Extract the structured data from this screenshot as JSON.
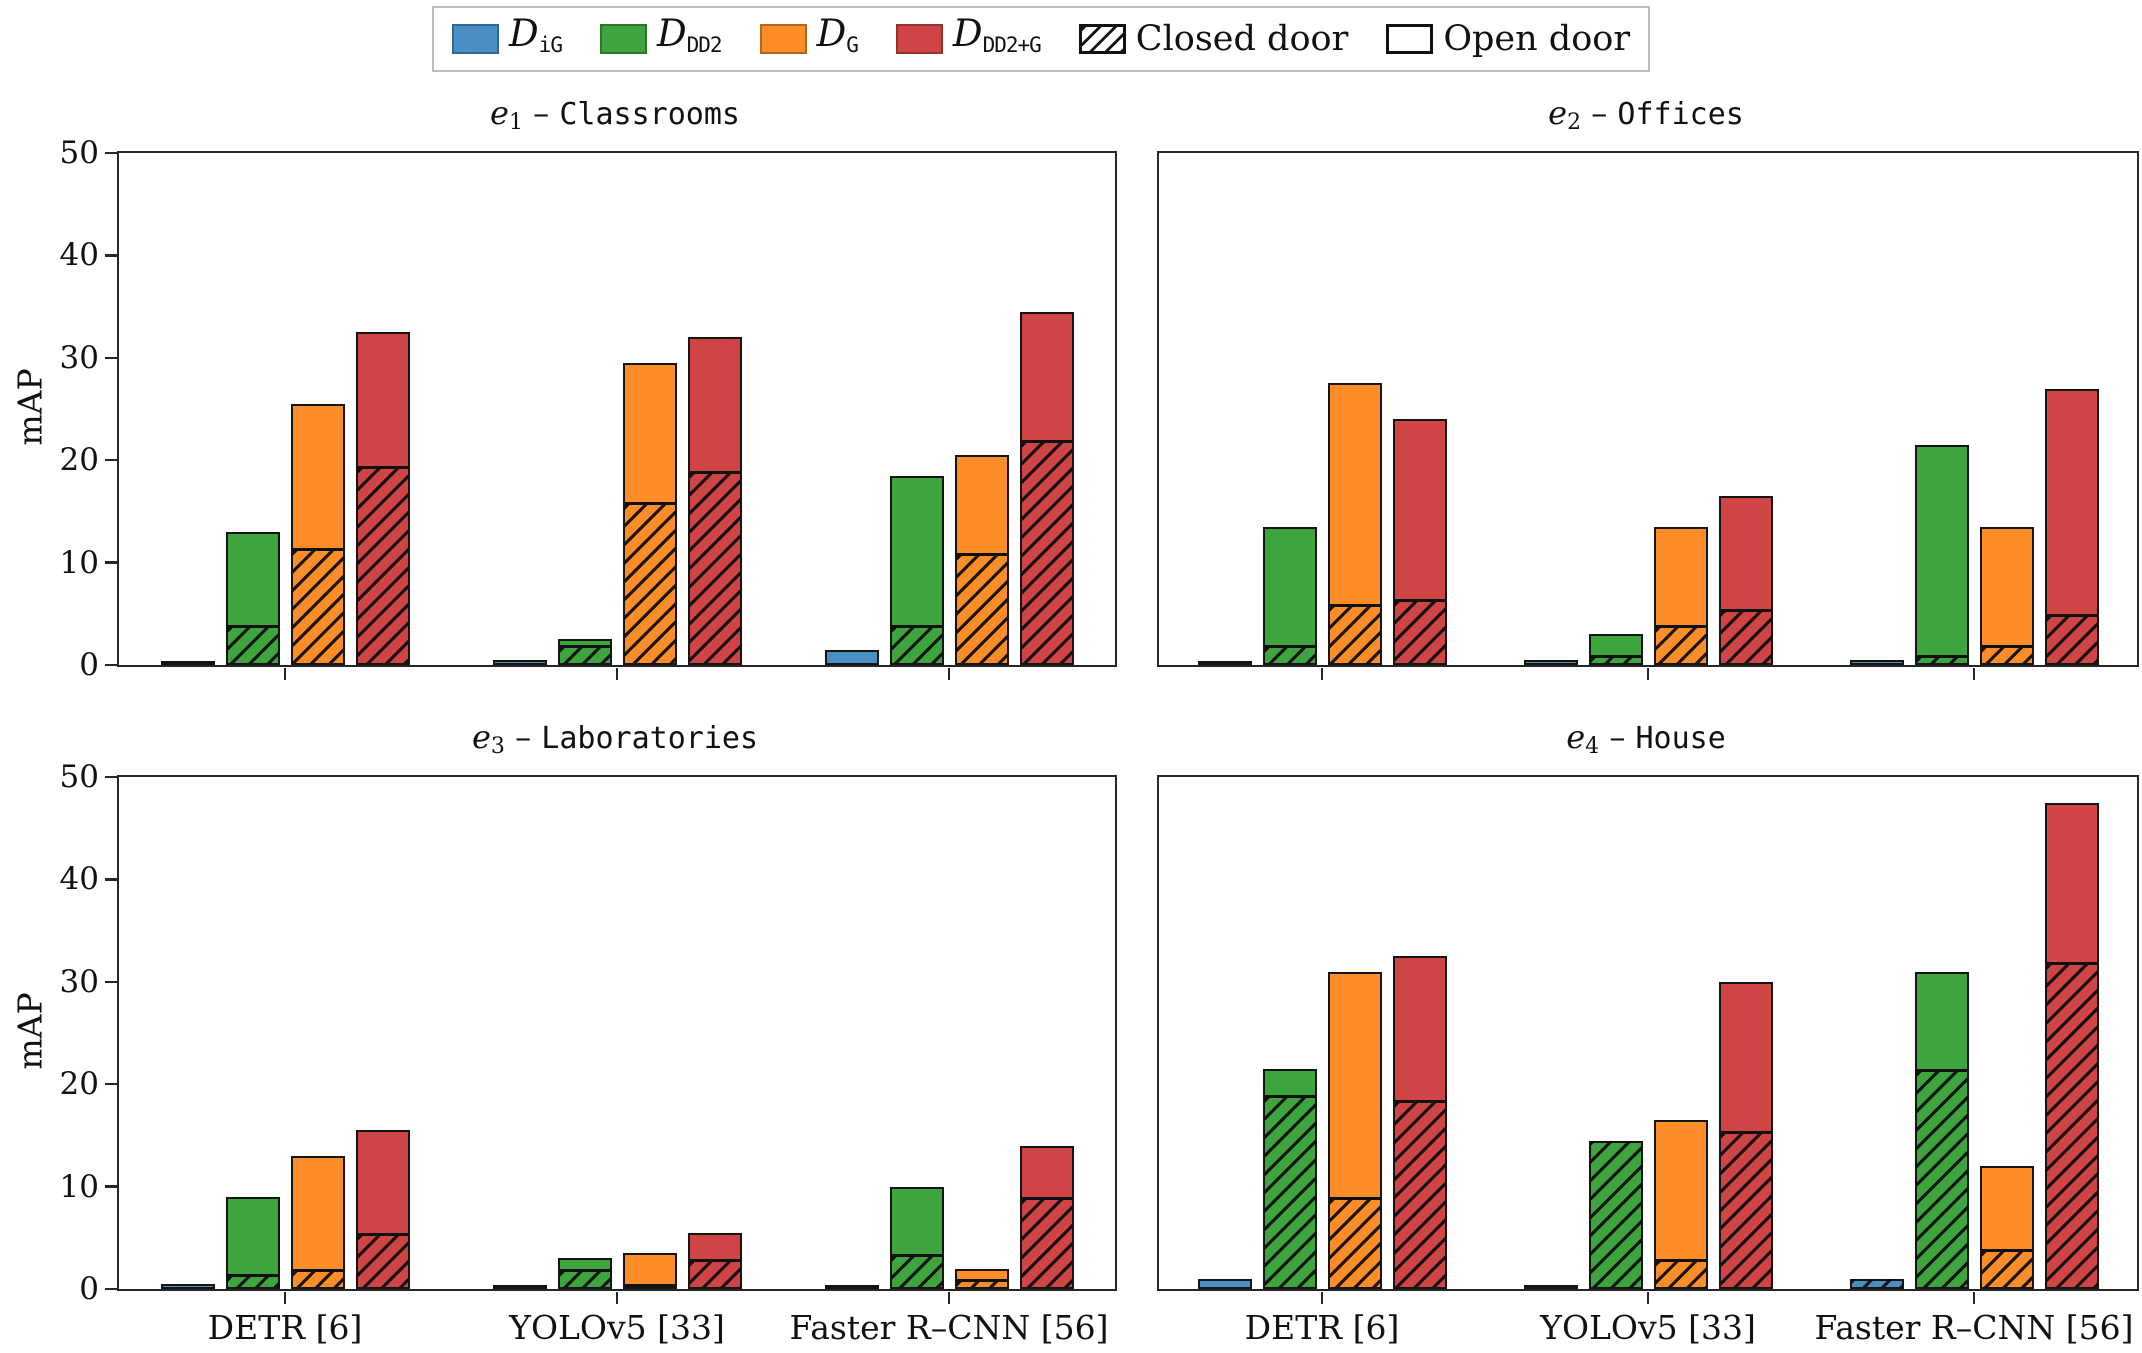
{
  "ylabel": "mAP",
  "title_sep": " – ",
  "yticks": [
    0,
    10,
    20,
    30,
    40,
    50
  ],
  "categories": [
    "DETR [6]",
    "YOLOv5 [33]",
    "Faster R–CNN [56]"
  ],
  "legend": {
    "datasets": [
      {
        "symbol": "D",
        "sub": "iG",
        "color": "#4a90c5"
      },
      {
        "symbol": "D",
        "sub": "DD2",
        "color": "#3ea43d"
      },
      {
        "symbol": "D",
        "sub": "G",
        "color": "#fc8d28"
      },
      {
        "symbol": "D",
        "sub": "DD2+G",
        "color": "#cf4444"
      }
    ],
    "closed_label": "Closed door",
    "open_label": "Open door"
  },
  "bar_edge_color": "#141414",
  "chart_data": [
    {
      "type": "bar",
      "title_var": "e",
      "title_sub": "1",
      "title_name": "Classrooms",
      "xlabel": "",
      "ylabel": "mAP",
      "ylim": [
        0,
        50
      ],
      "categories": [
        "DETR [6]",
        "YOLOv5 [33]",
        "Faster R–CNN [56]"
      ],
      "series": [
        {
          "name": "D_iG",
          "total": [
            0.25,
            0.5,
            1.5
          ],
          "closed": [
            0,
            0,
            0
          ]
        },
        {
          "name": "D_DD2",
          "total": [
            13,
            2.5,
            18.5
          ],
          "closed": [
            4,
            2,
            4
          ]
        },
        {
          "name": "D_G",
          "total": [
            25.5,
            29.5,
            20.5
          ],
          "closed": [
            11.5,
            16,
            11
          ]
        },
        {
          "name": "D_DD2+G",
          "total": [
            32.5,
            32,
            34.5
          ],
          "closed": [
            19.5,
            19,
            22
          ]
        }
      ]
    },
    {
      "type": "bar",
      "title_var": "e",
      "title_sub": "2",
      "title_name": "Offices",
      "xlabel": "",
      "ylabel": "",
      "ylim": [
        0,
        50
      ],
      "categories": [
        "DETR [6]",
        "YOLOv5 [33]",
        "Faster R–CNN [56]"
      ],
      "series": [
        {
          "name": "D_iG",
          "total": [
            0.2,
            0.5,
            0.5
          ],
          "closed": [
            0,
            0,
            0
          ]
        },
        {
          "name": "D_DD2",
          "total": [
            13.5,
            3,
            21.5
          ],
          "closed": [
            2,
            1,
            1
          ]
        },
        {
          "name": "D_G",
          "total": [
            27.5,
            13.5,
            13.5
          ],
          "closed": [
            6,
            4,
            2
          ]
        },
        {
          "name": "D_DD2+G",
          "total": [
            24,
            16.5,
            27
          ],
          "closed": [
            6.5,
            5.5,
            5
          ]
        }
      ]
    },
    {
      "type": "bar",
      "title_var": "e",
      "title_sub": "3",
      "title_name": "Laboratories",
      "xlabel": "",
      "ylabel": "mAP",
      "ylim": [
        0,
        50
      ],
      "categories": [
        "DETR [6]",
        "YOLOv5 [33]",
        "Faster R–CNN [56]"
      ],
      "series": [
        {
          "name": "D_iG",
          "total": [
            0.5,
            0.1,
            0.1
          ],
          "closed": [
            0,
            0,
            0
          ]
        },
        {
          "name": "D_DD2",
          "total": [
            9,
            3,
            10
          ],
          "closed": [
            1.5,
            2,
            3.5
          ]
        },
        {
          "name": "D_G",
          "total": [
            13,
            3.5,
            2
          ],
          "closed": [
            2,
            0.5,
            1
          ]
        },
        {
          "name": "D_DD2+G",
          "total": [
            15.5,
            5.5,
            14
          ],
          "closed": [
            5.5,
            3,
            9
          ]
        }
      ]
    },
    {
      "type": "bar",
      "title_var": "e",
      "title_sub": "4",
      "title_name": "House",
      "xlabel": "",
      "ylabel": "",
      "ylim": [
        0,
        50
      ],
      "categories": [
        "DETR [6]",
        "YOLOv5 [33]",
        "Faster R–CNN [56]"
      ],
      "series": [
        {
          "name": "D_iG",
          "total": [
            1,
            0.1,
            1
          ],
          "closed": [
            0,
            0,
            1
          ]
        },
        {
          "name": "D_DD2",
          "total": [
            21.5,
            14.5,
            31
          ],
          "closed": [
            19,
            14.5,
            21.5
          ]
        },
        {
          "name": "D_G",
          "total": [
            31,
            16.5,
            12
          ],
          "closed": [
            9,
            3,
            4
          ]
        },
        {
          "name": "D_DD2+G",
          "total": [
            32.5,
            30,
            47.5
          ],
          "closed": [
            18.5,
            15.5,
            32
          ]
        }
      ]
    }
  ]
}
